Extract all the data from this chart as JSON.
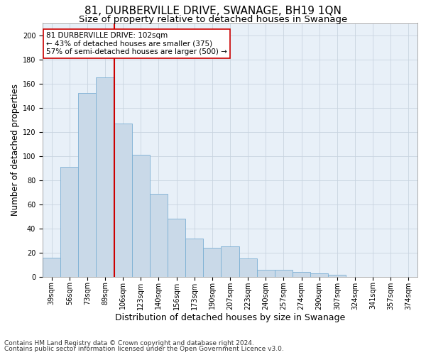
{
  "title": "81, DURBERVILLE DRIVE, SWANAGE, BH19 1QN",
  "subtitle": "Size of property relative to detached houses in Swanage",
  "xlabel": "Distribution of detached houses by size in Swanage",
  "ylabel": "Number of detached properties",
  "bar_values": [
    16,
    91,
    152,
    165,
    127,
    101,
    69,
    48,
    32,
    24,
    25,
    15,
    6,
    6,
    4,
    3,
    2
  ],
  "bar_labels": [
    "39sqm",
    "56sqm",
    "73sqm",
    "89sqm",
    "106sqm",
    "123sqm",
    "140sqm",
    "156sqm",
    "173sqm",
    "190sqm",
    "207sqm",
    "223sqm",
    "240sqm",
    "257sqm",
    "274sqm",
    "290sqm",
    "307sqm",
    "324sqm",
    "341sqm",
    "357sqm",
    "374sqm"
  ],
  "bar_color": "#c9d9e8",
  "bar_edge_color": "#7bafd4",
  "red_line_color": "#cc0000",
  "annotation_line1": "81 DURBERVILLE DRIVE: 102sqm",
  "annotation_line2": "← 43% of detached houses are smaller (375)",
  "annotation_line3": "57% of semi-detached houses are larger (500) →",
  "annotation_box_color": "#ffffff",
  "annotation_box_edge": "#cc0000",
  "ylim": [
    0,
    210
  ],
  "yticks": [
    0,
    20,
    40,
    60,
    80,
    100,
    120,
    140,
    160,
    180,
    200
  ],
  "footer1": "Contains HM Land Registry data © Crown copyright and database right 2024.",
  "footer2": "Contains public sector information licensed under the Open Government Licence v3.0.",
  "bg_color": "#ffffff",
  "plot_bg_color": "#e8f0f8",
  "grid_color": "#c8d4e0",
  "title_fontsize": 11,
  "subtitle_fontsize": 9.5,
  "ylabel_fontsize": 8.5,
  "xlabel_fontsize": 9,
  "tick_fontsize": 7,
  "annotation_fontsize": 7.5,
  "footer_fontsize": 6.5
}
